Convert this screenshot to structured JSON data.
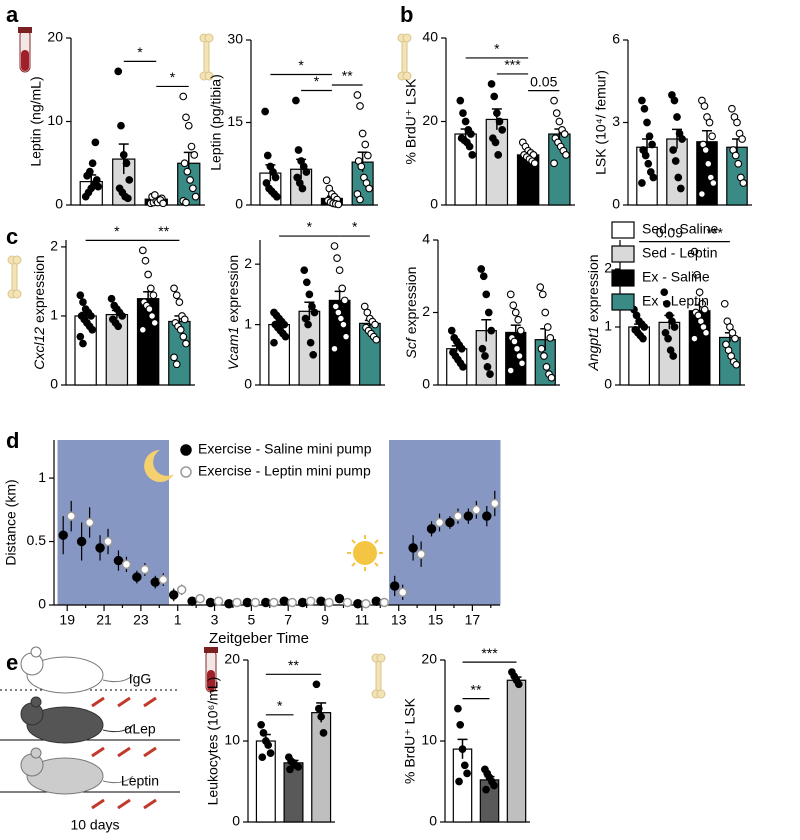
{
  "legend": {
    "items": [
      {
        "name": "Sed - Saline",
        "color": "#ffffff"
      },
      {
        "name": "Sed - Leptin",
        "color": "#d9d9d9"
      },
      {
        "name": "Ex - Saline",
        "color": "#000000"
      },
      {
        "name": "Ex - Leptin",
        "color": "#3a8a86"
      }
    ]
  },
  "diagram": {
    "labels": [
      "IgG",
      "αLep",
      "Leptin"
    ],
    "duration": "10 days"
  },
  "chart_data": [
    {
      "type": "bar",
      "panel": "a",
      "ylabel": "Leptin (ng/mL)",
      "ylim": [
        0,
        20
      ],
      "yticks": [
        0,
        10,
        20
      ],
      "colors": [
        "#ffffff",
        "#d9d9d9",
        "#000000",
        "#3a8a86"
      ],
      "point_colors": [
        "#000000",
        "#000000",
        "#ffffff",
        "#ffffff"
      ],
      "values": [
        2.8,
        5.5,
        0.7,
        5.0
      ],
      "errors": [
        0.8,
        1.8,
        0.3,
        1.3
      ],
      "points": [
        [
          1,
          1.5,
          2,
          2.5,
          3,
          3.5,
          4,
          5,
          7.5,
          2.2
        ],
        [
          16,
          9.5,
          6,
          5,
          3,
          2,
          1.5,
          1,
          0.8
        ],
        [
          0.2,
          0.3,
          0.5,
          0.5,
          0.8,
          1,
          1.2,
          0.3,
          0.6,
          0.2
        ],
        [
          13,
          10.5,
          9.5,
          7,
          6,
          5,
          4,
          3,
          2,
          1,
          0.5,
          0.3
        ]
      ],
      "brackets": [
        {
          "groups": [
            1,
            2
          ],
          "label": "*"
        },
        {
          "groups": [
            2,
            3
          ],
          "label": "*"
        }
      ]
    },
    {
      "type": "bar",
      "ylabel": "Leptin (pg/tibia)",
      "ylim": [
        0,
        30
      ],
      "yticks": [
        0,
        15,
        30
      ],
      "colors": [
        "#ffffff",
        "#d9d9d9",
        "#000000",
        "#3a8a86"
      ],
      "point_colors": [
        "#000000",
        "#000000",
        "#ffffff",
        "#ffffff"
      ],
      "values": [
        5.8,
        6.5,
        1.2,
        7.8
      ],
      "errors": [
        1.5,
        1.8,
        0.4,
        1.8
      ],
      "points": [
        [
          17,
          9,
          7,
          6,
          5,
          4,
          3,
          2.5,
          2,
          1.5
        ],
        [
          19,
          10,
          8,
          7,
          6,
          5,
          4,
          3
        ],
        [
          4.5,
          3,
          2,
          1.5,
          1,
          0.8,
          0.5,
          0.3,
          0.2,
          0.1
        ],
        [
          20,
          18,
          13,
          11,
          9,
          8,
          7,
          5,
          4,
          3,
          2,
          1
        ]
      ],
      "brackets": [
        {
          "groups": [
            1,
            2
          ],
          "label": "*"
        },
        {
          "groups": [
            2,
            3
          ],
          "label": "**"
        },
        {
          "groups": [
            0,
            2
          ],
          "label": "*"
        }
      ]
    },
    {
      "type": "bar",
      "panel": "b",
      "ylabel": "% BrdU⁺ LSK",
      "ylim": [
        0,
        40
      ],
      "yticks": [
        0,
        20,
        40
      ],
      "colors": [
        "#ffffff",
        "#d9d9d9",
        "#000000",
        "#3a8a86"
      ],
      "point_colors": [
        "#000000",
        "#000000",
        "#ffffff",
        "#ffffff"
      ],
      "values": [
        17,
        20.5,
        12,
        17
      ],
      "errors": [
        1.2,
        2.5,
        0.5,
        1.2
      ],
      "points": [
        [
          25,
          22,
          20,
          18,
          17,
          16,
          15.5,
          15,
          14,
          12
        ],
        [
          29,
          26,
          22,
          20,
          18,
          16,
          15,
          12
        ],
        [
          15,
          14,
          13,
          12.5,
          12,
          12,
          11.5,
          11,
          10.5,
          10
        ],
        [
          25,
          22,
          20,
          18,
          17,
          16,
          15,
          14,
          13,
          12,
          10
        ]
      ],
      "brackets": [
        {
          "groups": [
            1,
            2
          ],
          "label": "***"
        },
        {
          "groups": [
            2,
            3
          ],
          "label": "0.05"
        },
        {
          "groups": [
            0,
            2
          ],
          "label": "*"
        }
      ]
    },
    {
      "type": "bar",
      "ylabel": "LSK (10⁴/ femur)",
      "ylim": [
        0,
        6
      ],
      "yticks": [
        0,
        3,
        6
      ],
      "colors": [
        "#ffffff",
        "#d9d9d9",
        "#000000",
        "#3a8a86"
      ],
      "point_colors": [
        "#000000",
        "#000000",
        "#ffffff",
        "#ffffff"
      ],
      "values": [
        2.1,
        2.4,
        2.3,
        2.1
      ],
      "errors": [
        0.3,
        0.35,
        0.4,
        0.3
      ],
      "points": [
        [
          3.8,
          3.5,
          3,
          2.5,
          2.2,
          2,
          1.8,
          1.5,
          1.2,
          1,
          0.8
        ],
        [
          4,
          3.8,
          3.2,
          2.6,
          2.4,
          2,
          1.6,
          1,
          0.6
        ],
        [
          3.8,
          3.6,
          3.2,
          3,
          2.5,
          2.2,
          2,
          1.5,
          1,
          0.8,
          0.4
        ],
        [
          3.5,
          3.2,
          3,
          2.6,
          2.4,
          2,
          1.8,
          1.5,
          1,
          0.8
        ]
      ],
      "brackets": []
    },
    {
      "type": "bar",
      "panel": "c",
      "gene": "Cxcl12",
      "ylabel": "expression",
      "ylim": [
        0,
        2.1
      ],
      "yticks": [
        0,
        1,
        2
      ],
      "colors": [
        "#ffffff",
        "#d9d9d9",
        "#000000",
        "#3a8a86"
      ],
      "point_colors": [
        "#000000",
        "#000000",
        "#ffffff",
        "#ffffff"
      ],
      "values": [
        1.0,
        1.02,
        1.25,
        0.92
      ],
      "errors": [
        0.05,
        0.06,
        0.1,
        0.08
      ],
      "points": [
        [
          1.3,
          1.2,
          1.1,
          1.05,
          1,
          1,
          0.95,
          0.9,
          0.85,
          0.8,
          0.7,
          0.6
        ],
        [
          1.25,
          1.15,
          1.1,
          1.05,
          1,
          0.95,
          0.9,
          0.85
        ],
        [
          1.95,
          1.8,
          1.6,
          1.4,
          1.3,
          1.2,
          1.15,
          1.1,
          1,
          0.9,
          0.8
        ],
        [
          1.4,
          1.3,
          1.2,
          1,
          0.95,
          0.9,
          0.85,
          0.8,
          0.7,
          0.6,
          0.4,
          0.3
        ]
      ],
      "brackets": [
        {
          "groups": [
            2,
            3
          ],
          "label": "**"
        },
        {
          "groups": [
            0,
            2
          ],
          "label": "*"
        }
      ]
    },
    {
      "type": "bar",
      "gene": "Vcam1",
      "ylabel": "expression",
      "ylim": [
        0,
        2.4
      ],
      "yticks": [
        0,
        1,
        2
      ],
      "colors": [
        "#ffffff",
        "#d9d9d9",
        "#000000",
        "#3a8a86"
      ],
      "point_colors": [
        "#000000",
        "#000000",
        "#ffffff",
        "#ffffff"
      ],
      "values": [
        1.0,
        1.22,
        1.4,
        1.02
      ],
      "errors": [
        0.04,
        0.15,
        0.15,
        0.05
      ],
      "points": [
        [
          1.2,
          1.15,
          1.1,
          1.05,
          1,
          1,
          0.95,
          0.9,
          0.85,
          0.8,
          0.7
        ],
        [
          1.9,
          1.7,
          1.5,
          1.3,
          1.2,
          1.1,
          1,
          0.7,
          0.5
        ],
        [
          2.3,
          2.1,
          1.9,
          1.6,
          1.4,
          1.3,
          1.2,
          1.1,
          1,
          0.8,
          0.6
        ],
        [
          1.3,
          1.2,
          1.1,
          1.05,
          1,
          0.95,
          0.9,
          0.85,
          0.8,
          0.75
        ]
      ],
      "brackets": [
        {
          "groups": [
            2,
            3
          ],
          "label": "*"
        },
        {
          "groups": [
            0,
            2
          ],
          "label": "*"
        }
      ]
    },
    {
      "type": "bar",
      "gene": "Scf",
      "ylabel": "expression",
      "ylim": [
        0,
        4
      ],
      "yticks": [
        0,
        2,
        4
      ],
      "colors": [
        "#ffffff",
        "#d9d9d9",
        "#000000",
        "#3a8a86"
      ],
      "point_colors": [
        "#000000",
        "#000000",
        "#ffffff",
        "#ffffff"
      ],
      "values": [
        1.0,
        1.5,
        1.45,
        1.25
      ],
      "errors": [
        0.08,
        0.3,
        0.2,
        0.3
      ],
      "points": [
        [
          1.5,
          1.3,
          1.2,
          1.1,
          1,
          0.9,
          0.8,
          0.7,
          0.6,
          0.5
        ],
        [
          3.2,
          3,
          2.5,
          2,
          1.5,
          1,
          0.8,
          0.5,
          0.3
        ],
        [
          2.5,
          2.2,
          2,
          1.8,
          1.5,
          1.3,
          1.2,
          1,
          0.8,
          0.6,
          0.4
        ],
        [
          2.7,
          2.5,
          2,
          1.6,
          1.3,
          1,
          0.8,
          0.5,
          0.3,
          0.2
        ]
      ],
      "brackets": []
    },
    {
      "type": "bar",
      "gene": "Angpt1",
      "ylabel": "expression",
      "ylim": [
        0,
        2.5
      ],
      "yticks": [
        0,
        1,
        2
      ],
      "colors": [
        "#ffffff",
        "#d9d9d9",
        "#000000",
        "#3a8a86"
      ],
      "point_colors": [
        "#000000",
        "#000000",
        "#ffffff",
        "#ffffff"
      ],
      "values": [
        1.0,
        1.08,
        1.28,
        0.82
      ],
      "errors": [
        0.05,
        0.12,
        0.1,
        0.08
      ],
      "points": [
        [
          1.3,
          1.2,
          1.1,
          1.05,
          1,
          0.95,
          0.9,
          0.85,
          0.8
        ],
        [
          1.6,
          1.4,
          1.2,
          1.1,
          1,
          0.9,
          0.8,
          0.6,
          0.5
        ],
        [
          2.3,
          1.9,
          1.6,
          1.4,
          1.3,
          1.25,
          1.2,
          1.1,
          1,
          0.9,
          0.8
        ],
        [
          1.4,
          1.1,
          1,
          0.9,
          0.8,
          0.7,
          0.6,
          0.5,
          0.4,
          0.35
        ]
      ],
      "brackets": [
        {
          "groups": [
            2,
            3
          ],
          "label": "***"
        },
        {
          "groups": [
            0,
            2
          ],
          "label": "0.09"
        }
      ]
    },
    {
      "type": "scatter",
      "panel": "d",
      "ylabel": "Distance (km)",
      "xlabel": "Zeitgeber Time",
      "categories": [
        "19",
        null,
        "21",
        null,
        "23",
        null,
        "1",
        null,
        "3",
        null,
        "5",
        null,
        "7",
        null,
        "9",
        null,
        "11",
        null,
        "13",
        null,
        "15",
        null,
        "17",
        null
      ],
      "dark": [
        true,
        true,
        true,
        true,
        true,
        true,
        false,
        false,
        false,
        false,
        false,
        false,
        false,
        false,
        false,
        false,
        false,
        false,
        true,
        true,
        true,
        true,
        true,
        true
      ],
      "ylim": [
        0,
        1.3
      ],
      "yticks": [
        0,
        0.5,
        1
      ],
      "series": [
        {
          "name": "Exercise - Saline mini pump",
          "color": "#000000",
          "edgecolor": "#000000",
          "values": [
            0.55,
            0.5,
            0.45,
            0.35,
            0.22,
            0.18,
            0.08,
            0.03,
            0.02,
            0.01,
            0.02,
            0.02,
            0.03,
            0.02,
            0.03,
            0.05,
            0.01,
            0.03,
            0.15,
            0.45,
            0.6,
            0.65,
            0.7,
            0.7
          ],
          "errors": [
            0.15,
            0.15,
            0.1,
            0.08,
            0.05,
            0.05,
            0.05,
            0.02,
            0.02,
            0.01,
            0.02,
            0.02,
            0.02,
            0.02,
            0.02,
            0.03,
            0.01,
            0.02,
            0.08,
            0.1,
            0.06,
            0.05,
            0.06,
            0.08
          ]
        },
        {
          "name": "Exercise - Leptin mini pump",
          "color": "#ffffff",
          "edgecolor": "#9a9a9a",
          "values": [
            0.7,
            0.65,
            0.5,
            0.32,
            0.28,
            0.2,
            0.12,
            0.05,
            0.03,
            0.02,
            0.02,
            0.02,
            0.02,
            0.03,
            0.02,
            0.02,
            0.01,
            0.02,
            0.1,
            0.4,
            0.65,
            0.7,
            0.75,
            0.8
          ],
          "errors": [
            0.12,
            0.12,
            0.1,
            0.06,
            0.05,
            0.05,
            0.04,
            0.02,
            0.02,
            0.01,
            0.01,
            0.01,
            0.01,
            0.02,
            0.01,
            0.01,
            0.01,
            0.01,
            0.06,
            0.1,
            0.07,
            0.06,
            0.07,
            0.1
          ]
        }
      ]
    },
    {
      "type": "bar",
      "panel": "e",
      "ylabel": "Leukocytes (10⁶/mL)",
      "ylim": [
        0,
        20
      ],
      "yticks": [
        0,
        10,
        20
      ],
      "colors": [
        "#ffffff",
        "#595959",
        "#bfbfbf"
      ],
      "point_colors": [
        "#000000",
        "#000000",
        "#000000"
      ],
      "values": [
        10,
        7.3,
        13.5
      ],
      "errors": [
        0.8,
        0.3,
        1.2
      ],
      "points": [
        [
          12,
          11,
          10,
          9.5,
          8.5,
          8
        ],
        [
          8,
          7.5,
          7.3,
          7,
          6.8,
          6.5
        ],
        [
          17,
          14,
          13,
          11
        ]
      ],
      "brackets": [
        {
          "groups": [
            0,
            1
          ],
          "label": "*"
        },
        {
          "groups": [
            0,
            2
          ],
          "label": "**"
        }
      ]
    },
    {
      "type": "bar",
      "ylabel": "% BrdU⁺ LSK",
      "ylim": [
        0,
        20
      ],
      "yticks": [
        0,
        10,
        20
      ],
      "colors": [
        "#ffffff",
        "#595959",
        "#bfbfbf"
      ],
      "point_colors": [
        "#000000",
        "#000000",
        "#000000"
      ],
      "values": [
        9,
        5.2,
        17.5
      ],
      "errors": [
        1.2,
        0.4,
        0.4
      ],
      "points": [
        [
          14,
          12,
          9,
          7,
          6,
          5
        ],
        [
          6.5,
          6,
          5.5,
          5,
          4.5,
          4
        ],
        [
          18.5,
          18,
          17.5,
          17
        ]
      ],
      "brackets": [
        {
          "groups": [
            0,
            1
          ],
          "label": "**"
        },
        {
          "groups": [
            0,
            2
          ],
          "label": "***"
        }
      ]
    }
  ]
}
